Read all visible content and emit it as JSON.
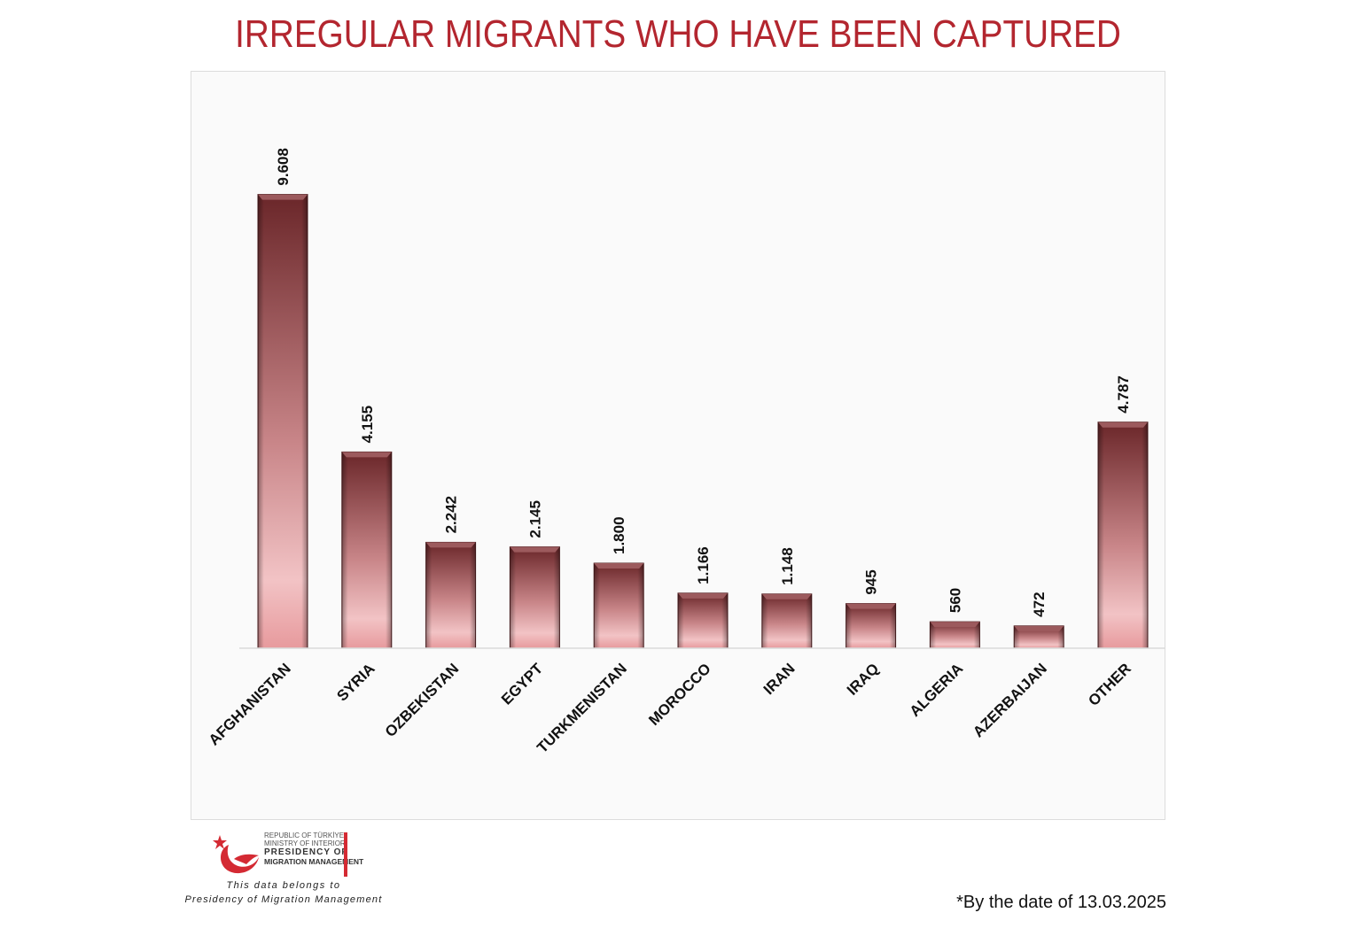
{
  "title": "IRREGULAR MIGRANTS WHO HAVE BEEN CAPTURED",
  "chart_data": {
    "type": "bar",
    "title": "IRREGULAR MIGRANTS WHO HAVE BEEN CAPTURED",
    "categories": [
      "AFGHANISTAN",
      "SYRIA",
      "OZBEKISTAN",
      "EGYPT",
      "TURKMENISTAN",
      "MOROCCO",
      "IRAN",
      "IRAQ",
      "ALGERIA",
      "AZERBAIJAN",
      "OTHER"
    ],
    "values": [
      9608,
      4155,
      2242,
      2145,
      1800,
      1166,
      1148,
      945,
      560,
      472,
      4787
    ],
    "value_labels": [
      "9.608",
      "4.155",
      "2.242",
      "2.145",
      "1.800",
      "1.166",
      "1.148",
      "945",
      "560",
      "472",
      "4.787"
    ],
    "ylim": [
      0,
      12000
    ],
    "grid": false,
    "legend": "none",
    "bar_color_top": "#6e2a2d",
    "bar_color_bottom": "#e9a3a6"
  },
  "logo": {
    "line1": "REPUBLIC OF TÜRKİYE",
    "line2": "MINISTRY OF INTERIOR",
    "line3": "PRESIDENCY OF",
    "line4": "MIGRATION MANAGEMENT",
    "accent_color": "#d42a33"
  },
  "source": {
    "line1": "This data belongs to",
    "line2": "Presidency of Migration Management"
  },
  "footnote": "*By the date of 13.03.2025"
}
